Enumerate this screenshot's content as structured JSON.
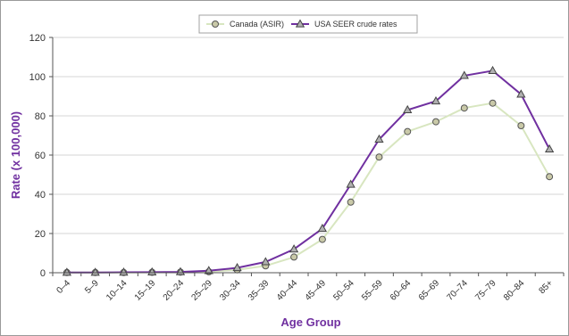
{
  "chart_data": {
    "type": "line",
    "title": "",
    "xlabel": "Age Group",
    "ylabel": "Rate (x 100,000)",
    "ylim": [
      0,
      120
    ],
    "yticks": [
      0,
      20,
      40,
      60,
      80,
      100,
      120
    ],
    "grid": true,
    "legend_position": "top",
    "categories": [
      "0–4",
      "5–9",
      "10–14",
      "15–19",
      "20–24",
      "25–29",
      "30–34",
      "35–39",
      "40–44",
      "45–49",
      "50–54",
      "55–59",
      "60–64",
      "65–69",
      "70–74",
      "75–79",
      "80–84",
      "85+"
    ],
    "highlight_category_color": "#4f7a28",
    "highlight_category_index": 17,
    "series": [
      {
        "name": "Canada (ASIR)",
        "marker": "circle",
        "line_color": "#d8e6c0",
        "marker_fill": "#c9c9a8",
        "values": [
          0.1,
          0.1,
          0.1,
          0.2,
          0.3,
          0.5,
          1.5,
          3.5,
          8,
          17,
          36,
          59,
          72,
          77,
          84,
          86.5,
          75,
          49
        ]
      },
      {
        "name": "USA SEER crude rates",
        "marker": "triangle",
        "line_color": "#7030a0",
        "marker_fill": "#b0b0b0",
        "values": [
          0.1,
          0.1,
          0.2,
          0.3,
          0.4,
          1,
          2.5,
          5.5,
          12,
          22.5,
          45,
          68,
          83,
          87.5,
          100.5,
          103,
          91,
          63
        ]
      }
    ]
  }
}
